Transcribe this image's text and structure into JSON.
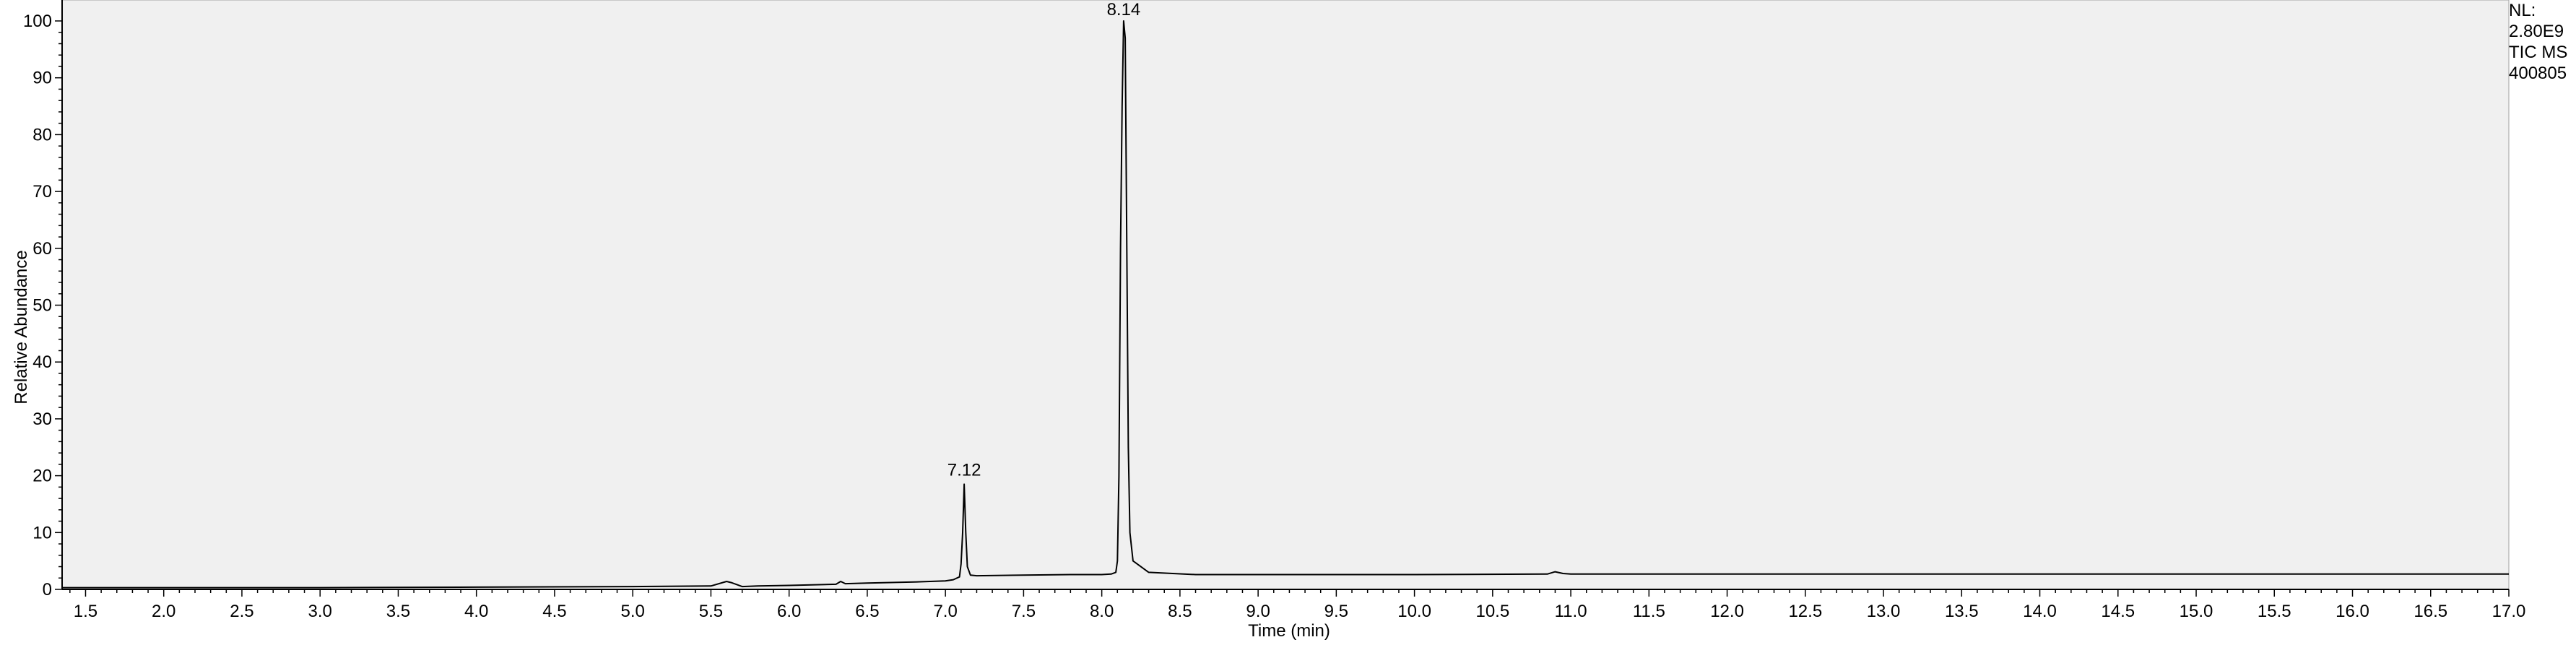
{
  "chart_data": {
    "type": "line",
    "xlabel": "Time (min)",
    "ylabel": "Relative Abundance",
    "xlim": [
      1.35,
      17.0
    ],
    "ylim": [
      0,
      100
    ],
    "x_ticks": [
      "1.5",
      "2.0",
      "2.5",
      "3.0",
      "3.5",
      "4.0",
      "4.5",
      "5.0",
      "5.5",
      "6.0",
      "6.5",
      "7.0",
      "7.5",
      "8.0",
      "8.5",
      "9.0",
      "9.5",
      "10.0",
      "10.5",
      "11.0",
      "11.5",
      "12.0",
      "12.5",
      "13.0",
      "13.5",
      "14.0",
      "14.5",
      "15.0",
      "15.5",
      "16.0",
      "16.5",
      "17.0"
    ],
    "y_ticks": [
      "0",
      "10",
      "20",
      "30",
      "40",
      "50",
      "60",
      "70",
      "80",
      "90",
      "100"
    ],
    "peak_labels": [
      {
        "label": "7.12",
        "x": 7.12,
        "y": 19
      },
      {
        "label": "8.14",
        "x": 8.14,
        "y": 100
      }
    ],
    "series": [
      {
        "color": "#000000",
        "x": [
          1.35,
          2.0,
          3.0,
          4.0,
          5.0,
          5.5,
          5.6,
          5.63,
          5.7,
          5.8,
          6.0,
          6.3,
          6.33,
          6.36,
          6.5,
          6.8,
          7.0,
          7.05,
          7.09,
          7.1,
          7.11,
          7.12,
          7.13,
          7.14,
          7.16,
          7.2,
          7.5,
          7.8,
          8.0,
          8.06,
          8.09,
          8.1,
          8.11,
          8.12,
          8.13,
          8.14,
          8.15,
          8.16,
          8.17,
          8.18,
          8.2,
          8.3,
          8.6,
          9.0,
          10.0,
          10.85,
          10.9,
          10.95,
          11.0,
          12.0,
          13.0,
          14.0,
          15.0,
          16.0,
          17.0
        ],
        "y": [
          0.3,
          0.3,
          0.3,
          0.4,
          0.5,
          0.6,
          1.4,
          1.2,
          0.5,
          0.6,
          0.7,
          0.9,
          1.4,
          1.0,
          1.1,
          1.3,
          1.5,
          1.7,
          2.2,
          4.5,
          10.0,
          18.5,
          10.0,
          4.0,
          2.5,
          2.4,
          2.5,
          2.6,
          2.6,
          2.7,
          3.0,
          5.0,
          20.0,
          60.0,
          85.0,
          100.0,
          97.0,
          60.0,
          25.0,
          10.0,
          5.0,
          3.0,
          2.6,
          2.6,
          2.6,
          2.7,
          3.1,
          2.8,
          2.7,
          2.7,
          2.7,
          2.7,
          2.7,
          2.7,
          2.7
        ]
      }
    ]
  },
  "info": {
    "nl_label": "NL:",
    "nl_value": "2.80E9",
    "trace": "TIC  MS",
    "file": "400805"
  }
}
